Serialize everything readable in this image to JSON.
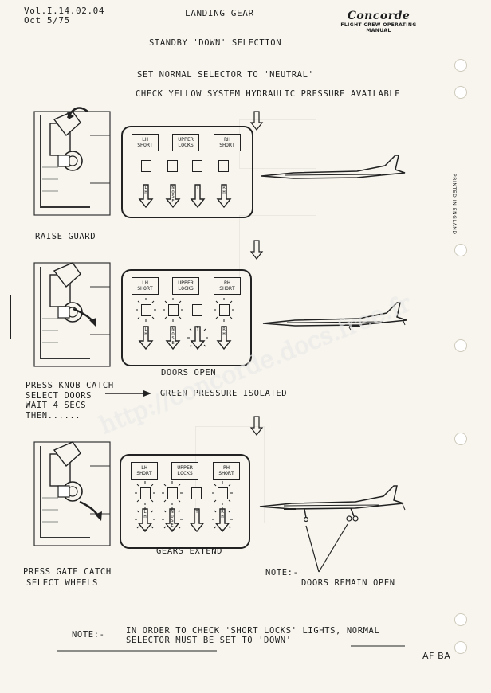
{
  "header": {
    "ref_line1": "Vol.I.14.02.04",
    "ref_line2": "Oct 5/75",
    "title": "LANDING GEAR",
    "brand": "Concorde",
    "brand_sub": "FLIGHT CREW OPERATING MANUAL",
    "subtitle": "STANDBY 'DOWN' SELECTION"
  },
  "side_text": "PRINTED IN ENGLAND",
  "steps": {
    "set_normal": "SET NORMAL SELECTOR TO 'NEUTRAL'",
    "check_yellow": "CHECK YELLOW SYSTEM HYDRAULIC PRESSURE AVAILABLE",
    "raise_guard": "RAISE GUARD",
    "press_knob_1": "PRESS KNOB CATCH",
    "press_knob_2": "SELECT DOORS",
    "press_knob_3": "WAIT 4 SECS",
    "press_knob_4": "THEN......",
    "doors_open": "DOORS OPEN",
    "green_isolated": "GREEN PRESSURE ISOLATED",
    "gears_extend": "GEARS EXTEND",
    "press_gate_1": "PRESS GATE CATCH",
    "press_gate_2": "SELECT WHEELS",
    "note_label": "NOTE:-",
    "doors_remain": "DOORS REMAIN OPEN"
  },
  "panel_labels": {
    "lh_1": "LH",
    "lh_2": "SHORT",
    "upper_1": "UPPER",
    "upper_2": "LOCKS",
    "rh_1": "RH",
    "rh_2": "SHORT",
    "arrow_lh": "LH",
    "arrow_nose": "NOSE",
    "arrow_t": "T",
    "arrow_rh": "RH"
  },
  "footer": {
    "note": "NOTE:-",
    "line1": "IN ORDER TO CHECK 'SHORT LOCKS' LIGHTS, NORMAL",
    "line2": "SELECTOR MUST BE SET TO 'DOWN'",
    "initials": "AF BA"
  },
  "watermark": "http://concorde.docs.free.fr"
}
